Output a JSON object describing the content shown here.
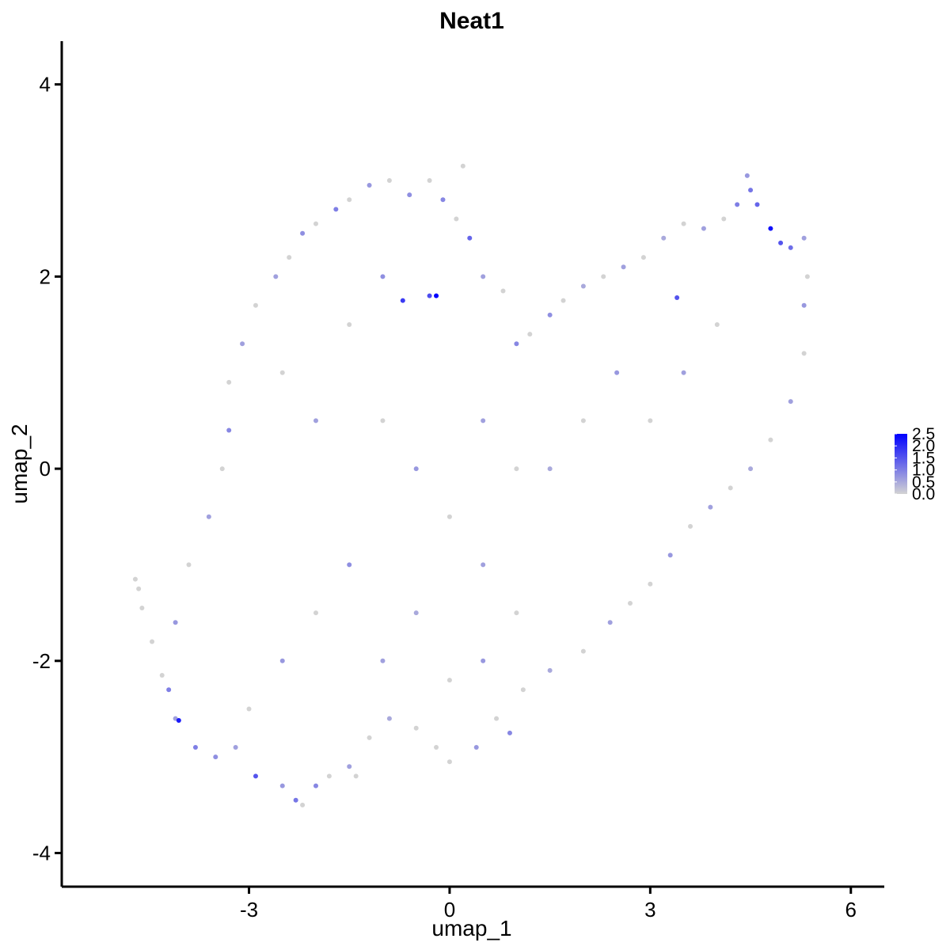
{
  "chart_data": {
    "type": "scatter",
    "title": "Neat1",
    "xlabel": "umap_1",
    "ylabel": "umap_2",
    "xlim": [
      -5.8,
      6.5
    ],
    "ylim": [
      -4.35,
      4.45
    ],
    "x_ticks": [
      -3,
      0,
      3,
      6
    ],
    "x_tick_labels": [
      "-3",
      "0",
      "3",
      "6"
    ],
    "y_ticks": [
      -4,
      -2,
      0,
      2,
      4
    ],
    "y_tick_labels": [
      "-4",
      "-2",
      "0",
      "2",
      "4"
    ],
    "grid": false,
    "legend": {
      "position": "right",
      "type": "colorbar",
      "min": 0,
      "max": 2.5,
      "ticks": [
        0,
        0.5,
        1,
        1.5,
        2,
        2.5
      ],
      "tick_labels": [
        "0.0",
        "0.5",
        "1.0",
        "1.5",
        "2.0",
        "2.5"
      ],
      "low_color": "#d3d3d3",
      "high_color": "#0000ff"
    },
    "points": [
      [
        -4.7,
        -1.15,
        0
      ],
      [
        -4.65,
        -1.25,
        0
      ],
      [
        -4.6,
        -1.45,
        0
      ],
      [
        -4.45,
        -1.8,
        0
      ],
      [
        -4.3,
        -2.15,
        0
      ],
      [
        -4.2,
        -2.3,
        1.0
      ],
      [
        -4.1,
        -2.6,
        0.6
      ],
      [
        -4.05,
        -2.62,
        2.2
      ],
      [
        -3.8,
        -2.9,
        1.0
      ],
      [
        -3.5,
        -3.0,
        0.8
      ],
      [
        -3.2,
        -2.9,
        0.6
      ],
      [
        -2.9,
        -3.2,
        1.5
      ],
      [
        -2.5,
        -3.3,
        0.7
      ],
      [
        -2.3,
        -3.45,
        1.1
      ],
      [
        -2.2,
        -3.5,
        0
      ],
      [
        -2.0,
        -3.3,
        0.9
      ],
      [
        -1.8,
        -3.2,
        0
      ],
      [
        -1.5,
        -3.1,
        0.6
      ],
      [
        -1.4,
        -3.2,
        0
      ],
      [
        -1.2,
        -2.8,
        0
      ],
      [
        -0.9,
        -2.6,
        0.5
      ],
      [
        -0.5,
        -2.7,
        0
      ],
      [
        -0.2,
        -2.9,
        0
      ],
      [
        0.0,
        -3.05,
        0
      ],
      [
        0.4,
        -2.9,
        0.7
      ],
      [
        0.7,
        -2.6,
        0
      ],
      [
        0.9,
        -2.75,
        0.9
      ],
      [
        1.1,
        -2.3,
        0
      ],
      [
        1.5,
        -2.1,
        0.5
      ],
      [
        2.0,
        -1.9,
        0
      ],
      [
        2.4,
        -1.6,
        0.6
      ],
      [
        2.7,
        -1.4,
        0
      ],
      [
        3.0,
        -1.2,
        0
      ],
      [
        3.3,
        -0.9,
        0.7
      ],
      [
        3.6,
        -0.6,
        0
      ],
      [
        3.9,
        -0.4,
        0.6
      ],
      [
        4.2,
        -0.2,
        0
      ],
      [
        4.5,
        0.0,
        0.5
      ],
      [
        4.8,
        0.3,
        0
      ],
      [
        5.1,
        0.7,
        0.6
      ],
      [
        5.3,
        1.2,
        0
      ],
      [
        5.3,
        1.7,
        0.7
      ],
      [
        5.35,
        2.0,
        0
      ],
      [
        5.3,
        2.4,
        0.6
      ],
      [
        5.1,
        2.3,
        1.2
      ],
      [
        4.95,
        2.35,
        1.5
      ],
      [
        4.8,
        2.5,
        2.3
      ],
      [
        4.6,
        2.75,
        1.3
      ],
      [
        4.5,
        2.9,
        1.1
      ],
      [
        4.45,
        3.05,
        0.7
      ],
      [
        4.3,
        2.75,
        1.0
      ],
      [
        4.1,
        2.6,
        0
      ],
      [
        3.8,
        2.5,
        0.6
      ],
      [
        3.5,
        2.55,
        0
      ],
      [
        3.2,
        2.4,
        0.5
      ],
      [
        2.9,
        2.2,
        0
      ],
      [
        2.6,
        2.1,
        0.6
      ],
      [
        2.3,
        2.0,
        0
      ],
      [
        2.0,
        1.9,
        0.5
      ],
      [
        1.7,
        1.75,
        0
      ],
      [
        1.5,
        1.6,
        0.8
      ],
      [
        1.2,
        1.4,
        0
      ],
      [
        1.0,
        1.3,
        0.9
      ],
      [
        0.8,
        1.85,
        0
      ],
      [
        0.5,
        2.0,
        0.6
      ],
      [
        0.3,
        2.4,
        1.3
      ],
      [
        0.1,
        2.6,
        0
      ],
      [
        -0.1,
        2.8,
        0.9
      ],
      [
        0.2,
        3.15,
        0
      ],
      [
        -0.3,
        3.0,
        0
      ],
      [
        -0.6,
        2.85,
        0.8
      ],
      [
        -0.9,
        3.0,
        0
      ],
      [
        -1.2,
        2.95,
        0.7
      ],
      [
        -1.5,
        2.8,
        0
      ],
      [
        -1.7,
        2.7,
        1.0
      ],
      [
        -2.0,
        2.55,
        0
      ],
      [
        -2.2,
        2.45,
        0.8
      ],
      [
        -2.4,
        2.2,
        0
      ],
      [
        -2.6,
        2.0,
        0.6
      ],
      [
        -2.9,
        1.7,
        0
      ],
      [
        -3.1,
        1.3,
        0.6
      ],
      [
        -3.3,
        0.9,
        0
      ],
      [
        -3.3,
        0.4,
        0.9
      ],
      [
        -3.4,
        0.0,
        0
      ],
      [
        -3.6,
        -0.5,
        0.6
      ],
      [
        -3.9,
        -1.0,
        0
      ],
      [
        -4.1,
        -1.6,
        0.7
      ],
      [
        -0.2,
        1.8,
        2.5
      ],
      [
        -0.7,
        1.75,
        1.8
      ],
      [
        -0.3,
        1.8,
        1.6
      ],
      [
        3.4,
        1.78,
        1.5
      ],
      [
        -1.0,
        0.5,
        0
      ],
      [
        -0.5,
        0.0,
        0.7
      ],
      [
        0.0,
        -0.5,
        0
      ],
      [
        0.5,
        -1.0,
        0.6
      ],
      [
        1.0,
        -1.5,
        0
      ],
      [
        -1.5,
        -1.0,
        0.8
      ],
      [
        -2.0,
        -1.5,
        0
      ],
      [
        -2.5,
        -2.0,
        0.7
      ],
      [
        -3.0,
        -2.5,
        0
      ],
      [
        -1.0,
        -2.0,
        0.6
      ],
      [
        0.0,
        -2.2,
        0
      ],
      [
        1.5,
        0.0,
        0.5
      ],
      [
        2.0,
        0.5,
        0
      ],
      [
        2.5,
        1.0,
        0.7
      ],
      [
        3.0,
        0.5,
        0
      ],
      [
        3.5,
        1.0,
        0.6
      ],
      [
        4.0,
        1.5,
        0
      ],
      [
        -2.0,
        0.5,
        0.6
      ],
      [
        -1.5,
        1.5,
        0
      ],
      [
        -1.0,
        2.0,
        0.8
      ],
      [
        -2.5,
        1.0,
        0
      ],
      [
        0.5,
        0.5,
        0.6
      ],
      [
        1.0,
        0.0,
        0
      ],
      [
        -0.5,
        -1.5,
        0.5
      ],
      [
        0.5,
        -2.0,
        0.7
      ]
    ]
  }
}
